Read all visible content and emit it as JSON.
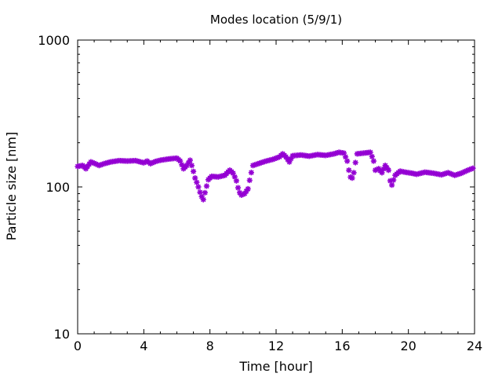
{
  "chart_data": {
    "type": "scatter",
    "title": "Modes location (5/9/1)",
    "xlabel": "Time [hour]",
    "ylabel": "Particle size [nm]",
    "xlim": [
      0,
      24
    ],
    "ylim": [
      10,
      1000
    ],
    "yscale": "log",
    "xticks": [
      0,
      4,
      8,
      12,
      16,
      20,
      24
    ],
    "xtick_labels": [
      "0",
      "4",
      "8",
      "12",
      "16",
      "20",
      "24"
    ],
    "yticks": [
      10,
      100,
      1000
    ],
    "ytick_labels": [
      "10",
      "100",
      "1000"
    ],
    "grid": false,
    "legend": "none",
    "marker": "asterisk",
    "color": "#9400d3",
    "anchors": [
      [
        0.0,
        138
      ],
      [
        0.3,
        140
      ],
      [
        0.5,
        133
      ],
      [
        0.8,
        148
      ],
      [
        1.0,
        145
      ],
      [
        1.3,
        140
      ],
      [
        1.6,
        144
      ],
      [
        2.0,
        148
      ],
      [
        2.5,
        151
      ],
      [
        3.0,
        150
      ],
      [
        3.5,
        151
      ],
      [
        4.0,
        146
      ],
      [
        4.2,
        150
      ],
      [
        4.4,
        144
      ],
      [
        4.7,
        149
      ],
      [
        5.0,
        152
      ],
      [
        5.5,
        155
      ],
      [
        6.0,
        157
      ],
      [
        6.2,
        150
      ],
      [
        6.4,
        133
      ],
      [
        6.6,
        140
      ],
      [
        6.8,
        152
      ],
      [
        6.9,
        140
      ],
      [
        7.1,
        115
      ],
      [
        7.3,
        100
      ],
      [
        7.45,
        88
      ],
      [
        7.6,
        82
      ],
      [
        7.75,
        96
      ],
      [
        7.9,
        112
      ],
      [
        8.1,
        118
      ],
      [
        8.5,
        117
      ],
      [
        8.9,
        120
      ],
      [
        9.2,
        130
      ],
      [
        9.4,
        124
      ],
      [
        9.6,
        110
      ],
      [
        9.75,
        93
      ],
      [
        9.9,
        88
      ],
      [
        10.1,
        90
      ],
      [
        10.3,
        97
      ],
      [
        10.45,
        118
      ],
      [
        10.6,
        140
      ],
      [
        11.0,
        145
      ],
      [
        11.4,
        150
      ],
      [
        11.8,
        154
      ],
      [
        12.2,
        160
      ],
      [
        12.4,
        168
      ],
      [
        12.6,
        160
      ],
      [
        12.8,
        148
      ],
      [
        13.0,
        163
      ],
      [
        13.5,
        165
      ],
      [
        14.0,
        162
      ],
      [
        14.5,
        166
      ],
      [
        15.0,
        164
      ],
      [
        15.5,
        168
      ],
      [
        15.8,
        172
      ],
      [
        16.1,
        170
      ],
      [
        16.3,
        150
      ],
      [
        16.4,
        130
      ],
      [
        16.55,
        110
      ],
      [
        16.7,
        125
      ],
      [
        16.9,
        168
      ],
      [
        17.3,
        170
      ],
      [
        17.7,
        172
      ],
      [
        17.9,
        150
      ],
      [
        18.0,
        130
      ],
      [
        18.2,
        133
      ],
      [
        18.4,
        125
      ],
      [
        18.6,
        140
      ],
      [
        18.8,
        130
      ],
      [
        18.9,
        110
      ],
      [
        19.0,
        103
      ],
      [
        19.2,
        120
      ],
      [
        19.5,
        128
      ],
      [
        19.8,
        126
      ],
      [
        20.2,
        124
      ],
      [
        20.5,
        122
      ],
      [
        21.0,
        126
      ],
      [
        21.5,
        124
      ],
      [
        22.0,
        121
      ],
      [
        22.4,
        125
      ],
      [
        22.8,
        120
      ],
      [
        23.2,
        124
      ],
      [
        23.6,
        130
      ],
      [
        23.9,
        134
      ]
    ]
  }
}
